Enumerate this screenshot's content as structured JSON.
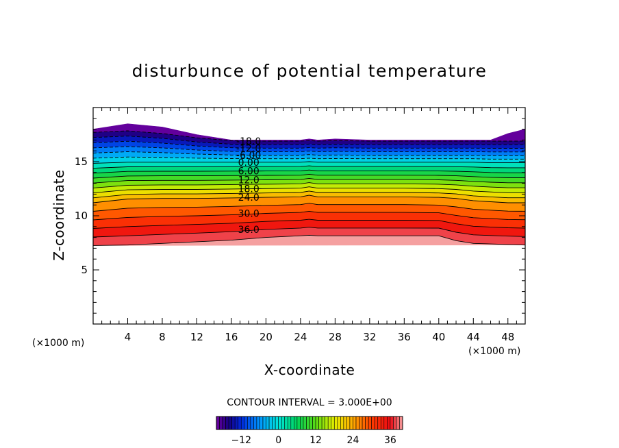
{
  "chart_data": {
    "type": "contour",
    "title": "disturbunce of potential temperature",
    "xlabel": "X-coordinate",
    "ylabel": "Z-coordinate",
    "x_unit": "(×1000 m)",
    "z_unit": "(×1000 m)",
    "xlim": [
      0,
      50
    ],
    "ylim": [
      0,
      20
    ],
    "x_ticks": [
      4,
      8,
      12,
      16,
      20,
      24,
      28,
      32,
      36,
      40,
      44,
      48
    ],
    "y_ticks": [
      5,
      10,
      15
    ],
    "contour_interval_text": "CONTOUR INTERVAL = 3.000E+00",
    "contour_interval": 3.0,
    "levels": [
      -18,
      -15,
      -12,
      -9,
      -6,
      -3,
      0,
      3,
      6,
      9,
      12,
      15,
      18,
      21,
      24,
      27,
      30,
      33,
      36,
      39
    ],
    "contour_labels": [
      "-18.0",
      "-12.0",
      "-6.00",
      "0.00",
      "6.00",
      "12.0",
      "18.0",
      "24.0",
      "30.0",
      "36.0"
    ],
    "colorbar": {
      "range": [
        -20,
        40
      ],
      "tick_values": [
        -12,
        0,
        12,
        24,
        36
      ],
      "tick_labels": [
        "−12",
        "0",
        "12",
        "24",
        "36"
      ]
    },
    "profile_x": [
      0,
      4,
      8,
      12,
      16,
      20,
      24,
      25,
      26,
      28,
      32,
      36,
      40,
      42,
      44,
      46,
      48,
      50
    ],
    "field_top": [
      18.0,
      18.5,
      18.2,
      17.5,
      17.0,
      17.0,
      17.0,
      17.1,
      17.0,
      17.1,
      17.0,
      17.0,
      17.0,
      17.0,
      17.0,
      17.0,
      17.6,
      18.0
    ],
    "level_-18_height": [
      17.7,
      17.85,
      17.6,
      17.2,
      16.95,
      16.9,
      16.9,
      16.95,
      16.9,
      16.95,
      16.9,
      16.9,
      16.9,
      16.9,
      16.9,
      16.9,
      16.9,
      16.9
    ],
    "level_0_height": [
      14.85,
      14.95,
      14.95,
      14.95,
      14.95,
      14.95,
      14.95,
      15.0,
      14.95,
      14.95,
      14.95,
      14.95,
      14.95,
      14.95,
      14.95,
      14.9,
      14.9,
      14.9
    ],
    "level_24_height": [
      11.2,
      11.55,
      11.6,
      11.6,
      11.65,
      11.7,
      11.75,
      11.9,
      11.75,
      11.75,
      11.75,
      11.75,
      11.7,
      11.6,
      11.4,
      11.3,
      11.2,
      11.2
    ],
    "level_39_height": [
      7.25,
      7.3,
      7.45,
      7.6,
      7.75,
      8.0,
      8.15,
      8.2,
      8.15,
      8.15,
      8.15,
      8.15,
      8.15,
      7.7,
      7.45,
      7.4,
      7.35,
      7.3
    ]
  }
}
